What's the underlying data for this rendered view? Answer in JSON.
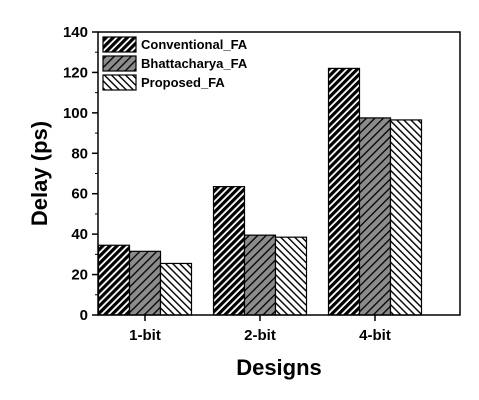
{
  "chart_data": {
    "type": "bar",
    "title": "",
    "xlabel": "Designs",
    "ylabel": "Delay (ps)",
    "categories": [
      "1-bit",
      "2-bit",
      "4-bit"
    ],
    "series": [
      {
        "name": "Conventional_FA",
        "values": [
          34.5,
          63.5,
          122
        ],
        "pattern": "dense-diagonal"
      },
      {
        "name": "Bhattacharya_FA",
        "values": [
          31.5,
          39.5,
          97.5
        ],
        "pattern": "gray-diagonal"
      },
      {
        "name": "Proposed_FA",
        "values": [
          25.5,
          38.5,
          96.5
        ],
        "pattern": "back-diagonal"
      }
    ],
    "ylim": [
      0,
      140
    ],
    "yticks": [
      0,
      20,
      40,
      60,
      80,
      100,
      120,
      140
    ],
    "grid": false,
    "legend_position": "top-left",
    "colors": {
      "axis": "#000000",
      "bar_stroke": "#000000",
      "gray_fill": "#8c8c8c"
    }
  }
}
